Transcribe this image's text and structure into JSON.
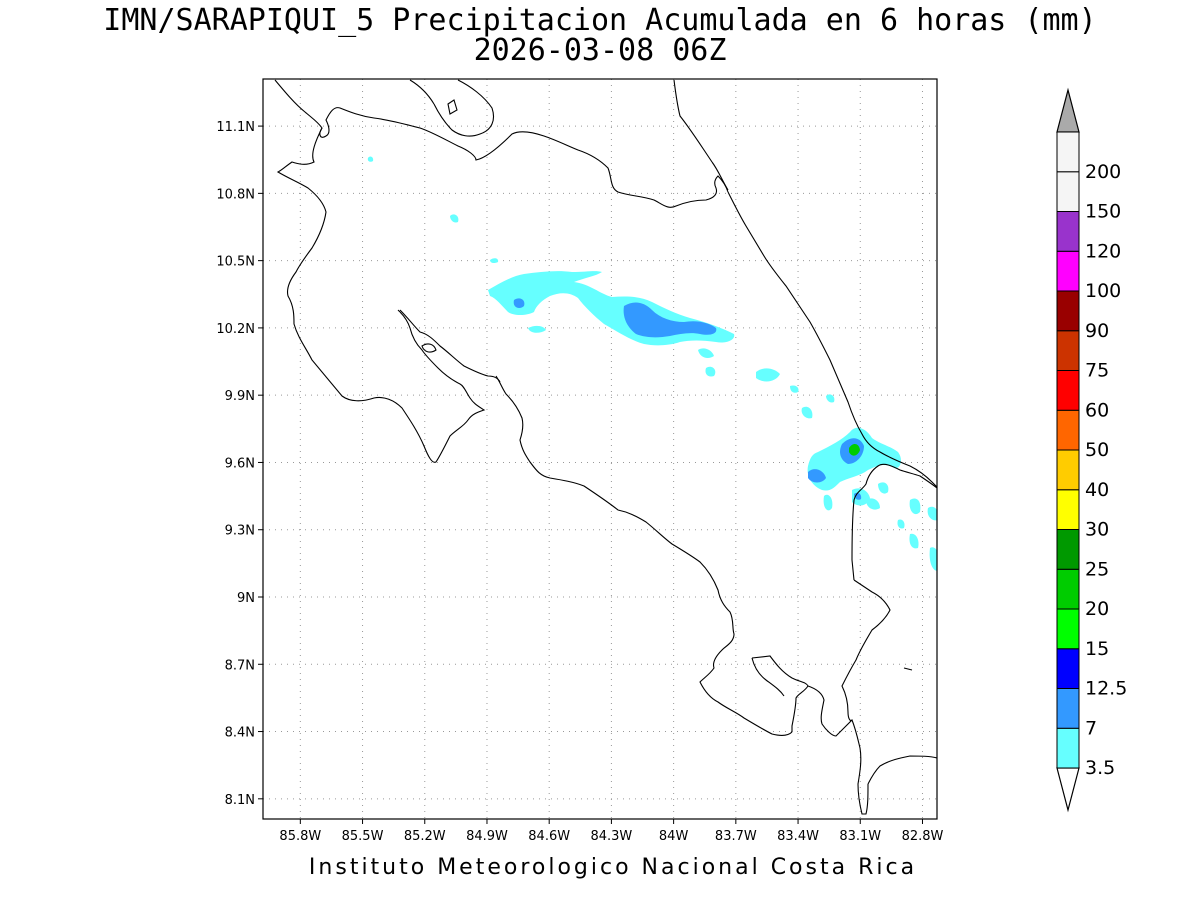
{
  "title_line1": "IMN/SARAPIQUI_5 Precipitacion Acumulada en 6 horas (mm)",
  "title_line2": "2026-03-08 06Z",
  "credit": "Instituto Meteorologico Nacional Costa Rica",
  "map": {
    "lon_range": [
      -85.98,
      -82.73
    ],
    "lat_range": [
      8.01,
      11.31
    ],
    "lon_ticks": [
      {
        "value": -85.8,
        "label": "85.8W"
      },
      {
        "value": -85.5,
        "label": "85.5W"
      },
      {
        "value": -85.2,
        "label": "85.2W"
      },
      {
        "value": -84.9,
        "label": "84.9W"
      },
      {
        "value": -84.6,
        "label": "84.6W"
      },
      {
        "value": -84.3,
        "label": "84.3W"
      },
      {
        "value": -84.0,
        "label": "84W"
      },
      {
        "value": -83.7,
        "label": "83.7W"
      },
      {
        "value": -83.4,
        "label": "83.4W"
      },
      {
        "value": -83.1,
        "label": "83.1W"
      },
      {
        "value": -82.8,
        "label": "82.8W"
      }
    ],
    "lat_ticks": [
      {
        "value": 8.1,
        "label": "8.1N"
      },
      {
        "value": 8.4,
        "label": "8.4N"
      },
      {
        "value": 8.7,
        "label": "8.7N"
      },
      {
        "value": 9.0,
        "label": "9N"
      },
      {
        "value": 9.3,
        "label": "9.3N"
      },
      {
        "value": 9.6,
        "label": "9.6N"
      },
      {
        "value": 9.9,
        "label": "9.9N"
      },
      {
        "value": 10.2,
        "label": "10.2N"
      },
      {
        "value": 10.5,
        "label": "10.5N"
      },
      {
        "value": 10.8,
        "label": "10.8N"
      },
      {
        "value": 11.1,
        "label": "11.1N"
      }
    ],
    "grid": "dotted",
    "coastline_color": "#000000"
  },
  "colorbar": {
    "labels": [
      "3.5",
      "7",
      "12.5",
      "15",
      "20",
      "25",
      "30",
      "40",
      "50",
      "60",
      "75",
      "90",
      "100",
      "120",
      "150",
      "200"
    ],
    "colors": [
      "#66ffff",
      "#3399ff",
      "#0000ff",
      "#00ff00",
      "#00cc00",
      "#009900",
      "#ffff00",
      "#ffcc00",
      "#ff6600",
      "#ff0000",
      "#cc3300",
      "#990000",
      "#ff00ff",
      "#9933cc",
      "#f5f5f5",
      "#aaaaaa"
    ],
    "min_end_color": "#ffffff",
    "max_end_color": "#aaaaaa"
  },
  "precip_colors": {
    "cyan": "#66ffff",
    "light_blue": "#3399ff",
    "blue": "#0000ff",
    "green": "#00cc00"
  }
}
